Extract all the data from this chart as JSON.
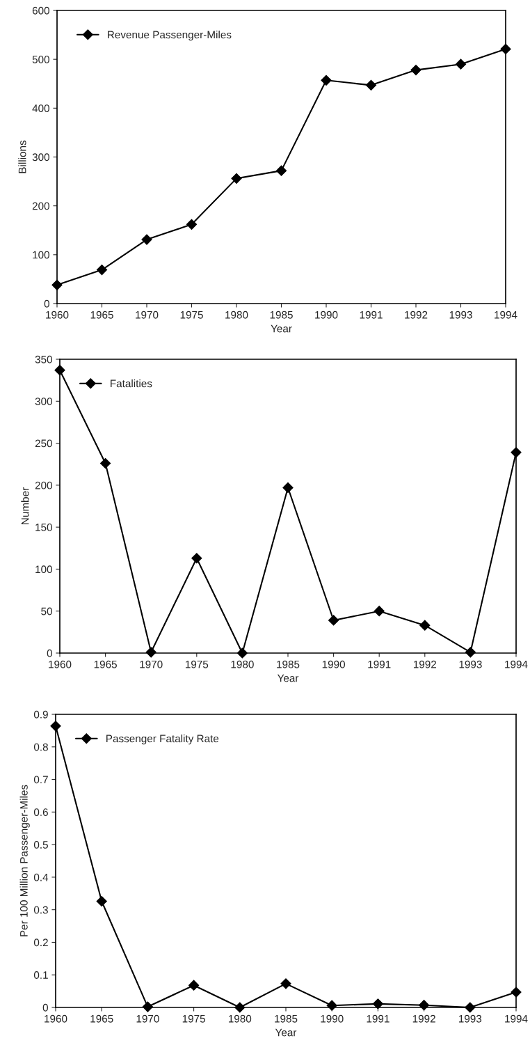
{
  "chart_data": [
    {
      "type": "line",
      "xlabel": "Year",
      "ylabel": "Billions",
      "categories": [
        "1960",
        "1965",
        "1970",
        "1975",
        "1980",
        "1985",
        "1990",
        "1991",
        "1992",
        "1993",
        "1994"
      ],
      "series": [
        {
          "name": "Revenue Passenger-Miles",
          "color": "#000000",
          "values": [
            38,
            69,
            131,
            162,
            256,
            272,
            457,
            447,
            478,
            490,
            521
          ]
        }
      ],
      "ylim": [
        0,
        600
      ],
      "yticks": [
        0,
        100,
        200,
        300,
        400,
        500,
        600
      ],
      "grid": false,
      "legend": "top left",
      "marker": "diamond",
      "line_style": "solid"
    },
    {
      "type": "line",
      "xlabel": "Year",
      "ylabel": "Number",
      "categories": [
        "1960",
        "1965",
        "1970",
        "1975",
        "1980",
        "1985",
        "1990",
        "1991",
        "1992",
        "1993",
        "1994"
      ],
      "series": [
        {
          "name": "Fatalities",
          "color": "#000000",
          "values": [
            337,
            226,
            1,
            113,
            0,
            197,
            39,
            50,
            33,
            1,
            239
          ]
        }
      ],
      "ylim": [
        0,
        350
      ],
      "yticks": [
        0,
        50,
        100,
        150,
        200,
        250,
        300,
        350
      ],
      "grid": false,
      "legend": "top left",
      "marker": "diamond",
      "line_style": "solid"
    },
    {
      "type": "line",
      "xlabel": "Year",
      "ylabel": "Per 100 Million Passenger-Miles",
      "categories": [
        "1960",
        "1965",
        "1970",
        "1975",
        "1980",
        "1985",
        "1990",
        "1991",
        "1992",
        "1993",
        "1994"
      ],
      "series": [
        {
          "name": "Passenger Fatality Rate",
          "color": "#000000",
          "values": [
            0.864,
            0.326,
            0.002,
            0.068,
            0,
            0.073,
            0.006,
            0.011,
            0.007,
            0,
            0.047
          ]
        }
      ],
      "ylim": [
        0,
        0.9
      ],
      "yticks": [
        0,
        0.1,
        0.2,
        0.3,
        0.4,
        0.5,
        0.6,
        0.7,
        0.8,
        0.9
      ],
      "grid": false,
      "legend": "top left",
      "marker": "diamond",
      "line_style": "solid"
    }
  ]
}
